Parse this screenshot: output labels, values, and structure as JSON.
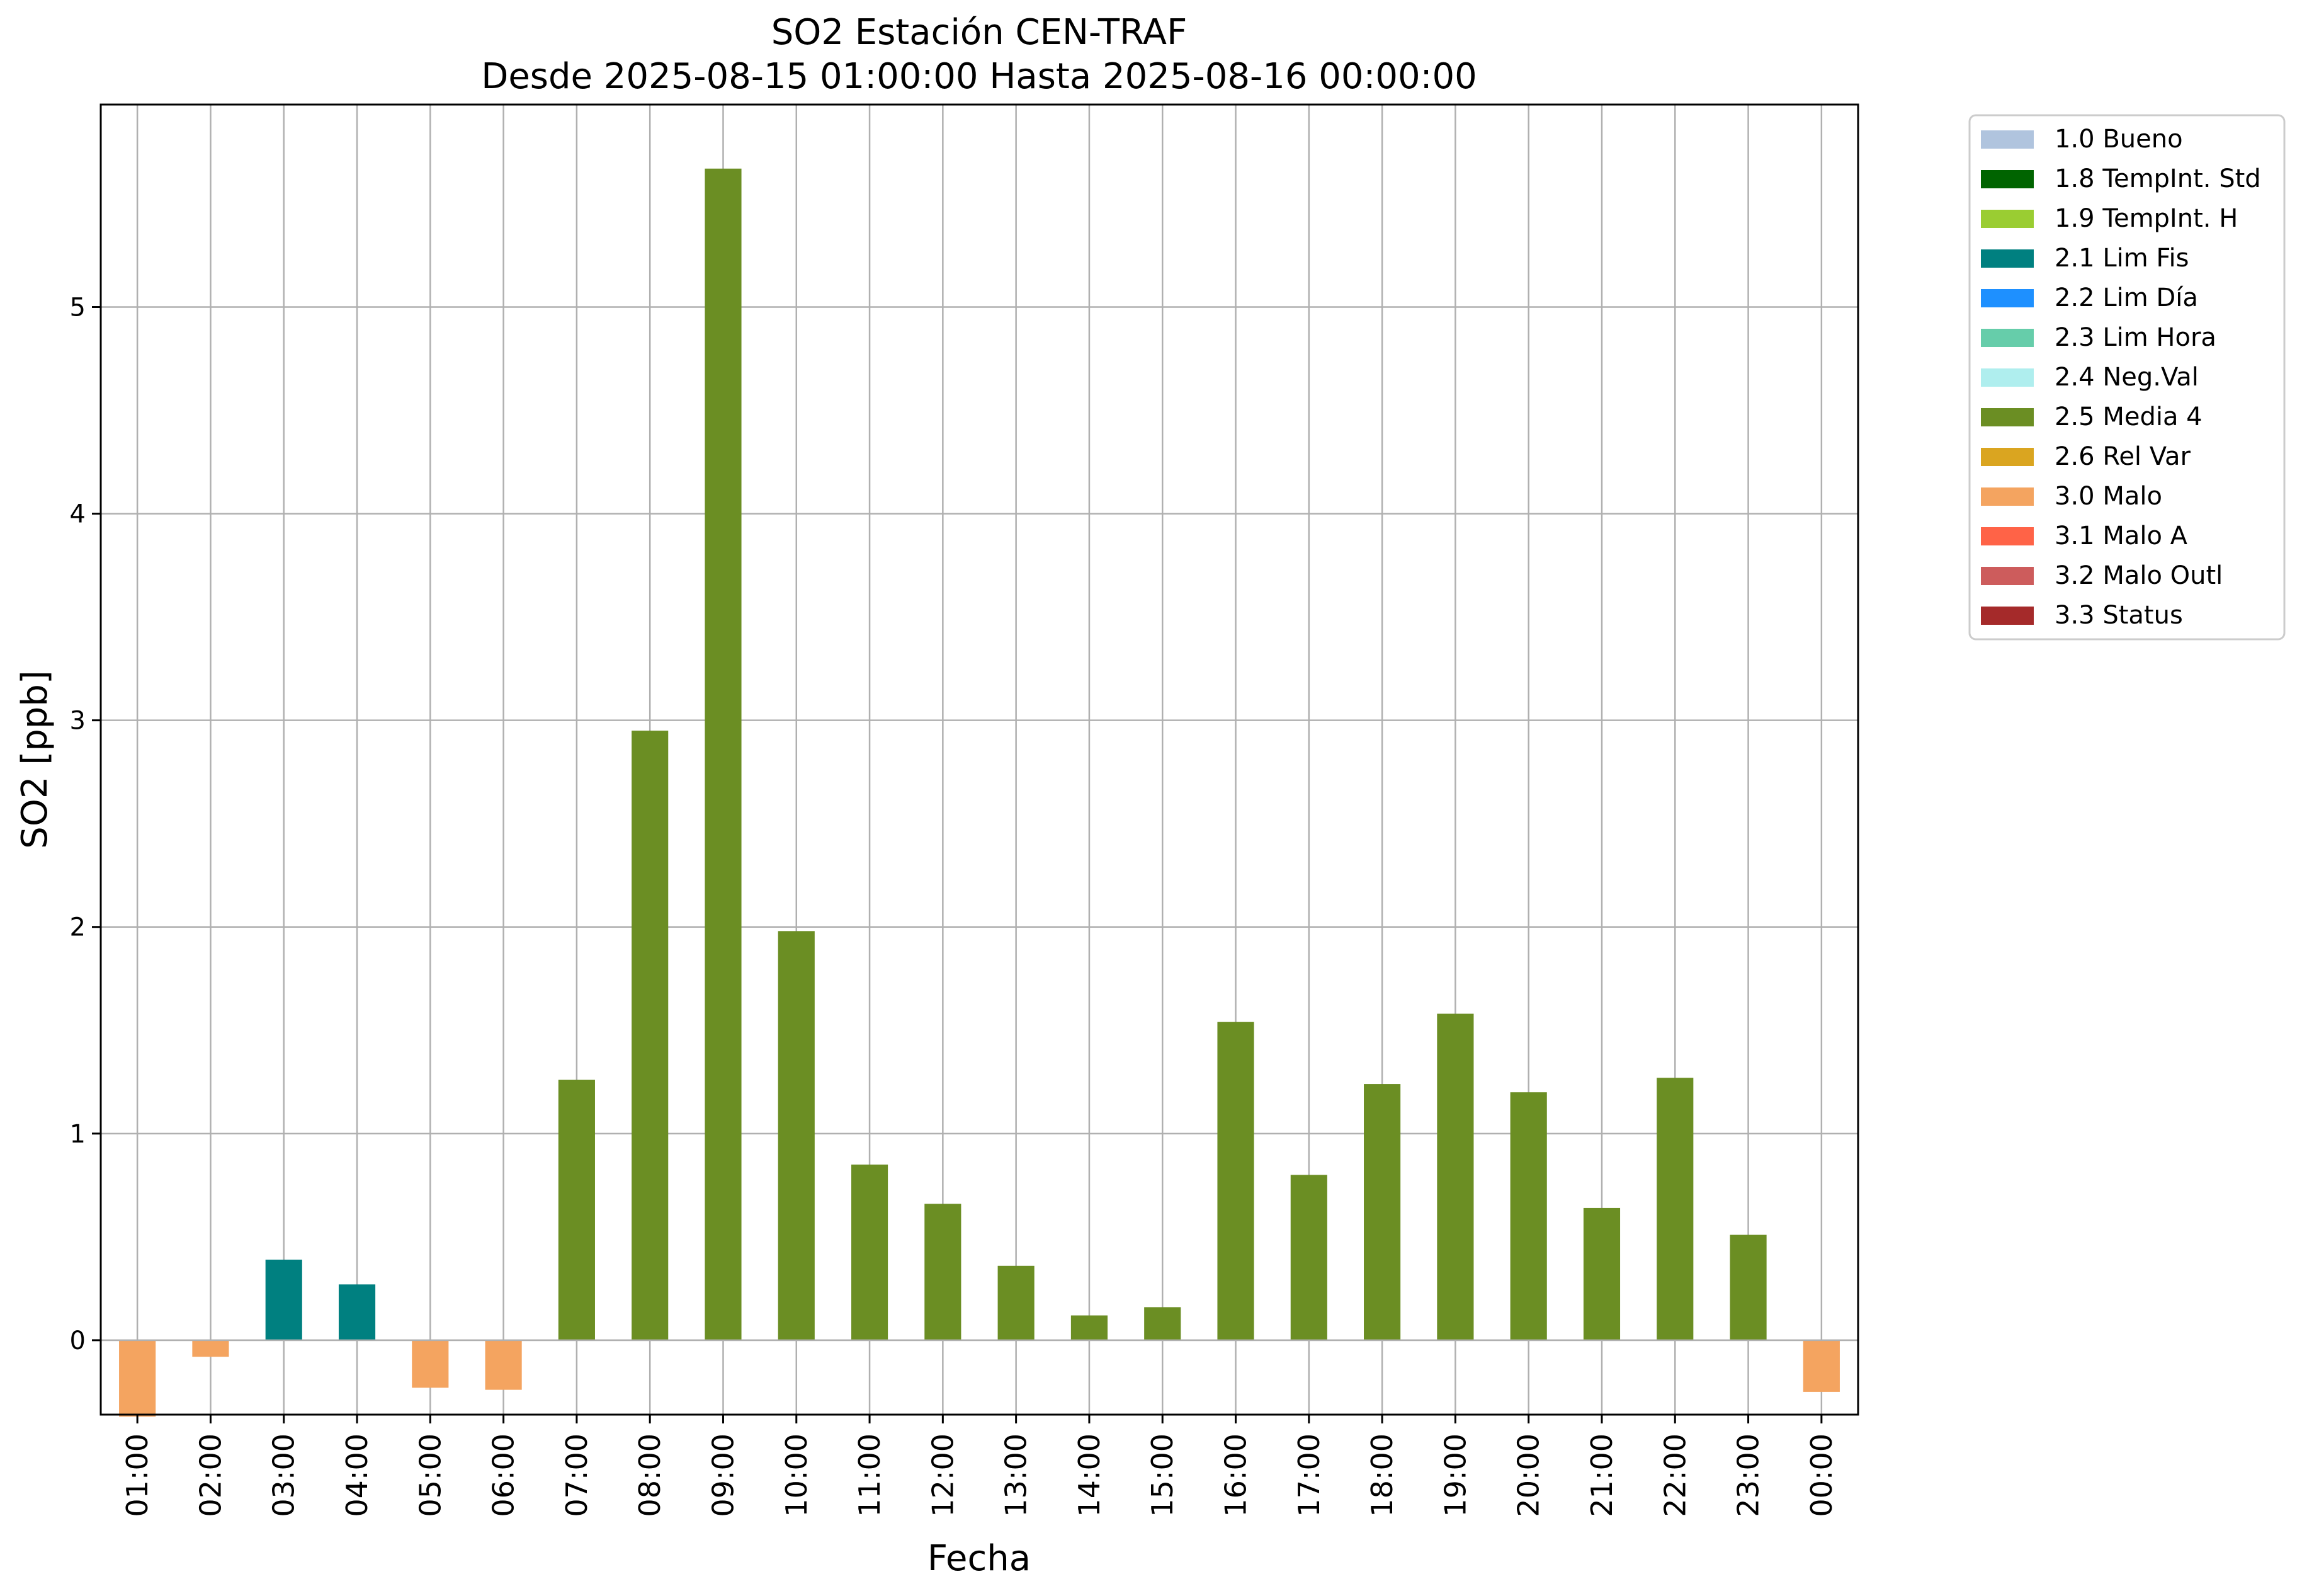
{
  "chart_data": {
    "type": "bar",
    "title": "SO2 Estación CEN-TRAF",
    "subtitle": "Desde 2025-08-15 01:00:00 Hasta 2025-08-16 00:00:00",
    "xlabel": "Fecha",
    "ylabel": "SO2 [ppb]",
    "ylim": [
      -0.36,
      5.98
    ],
    "yticks": [
      0,
      1,
      2,
      3,
      4,
      5
    ],
    "grid": true,
    "legend_position": "outside-top-right",
    "categories": [
      "01:00",
      "02:00",
      "03:00",
      "04:00",
      "05:00",
      "06:00",
      "07:00",
      "08:00",
      "09:00",
      "10:00",
      "11:00",
      "12:00",
      "13:00",
      "14:00",
      "15:00",
      "16:00",
      "17:00",
      "18:00",
      "19:00",
      "20:00",
      "21:00",
      "22:00",
      "23:00",
      "00:00"
    ],
    "values": [
      -0.37,
      -0.08,
      0.39,
      0.27,
      -0.23,
      -0.24,
      1.26,
      2.95,
      5.67,
      1.98,
      0.85,
      0.66,
      0.36,
      0.12,
      0.16,
      1.54,
      0.8,
      1.24,
      1.58,
      1.2,
      0.64,
      1.27,
      0.51,
      -0.25
    ],
    "flags": [
      "3.0 Malo",
      "3.0 Malo",
      "2.1 Lim Fis",
      "2.1 Lim Fis",
      "3.0 Malo",
      "3.0 Malo",
      "2.5 Media 4",
      "2.5 Media 4",
      "2.5 Media 4",
      "2.5 Media 4",
      "2.5 Media 4",
      "2.5 Media 4",
      "2.5 Media 4",
      "2.5 Media 4",
      "2.5 Media 4",
      "2.5 Media 4",
      "2.5 Media 4",
      "2.5 Media 4",
      "2.5 Media 4",
      "2.5 Media 4",
      "2.5 Media 4",
      "2.5 Media 4",
      "2.5 Media 4",
      "3.0 Malo"
    ],
    "legend": [
      {
        "label": "1.0 Bueno",
        "color": "#b0c4de"
      },
      {
        "label": "1.8 TempInt. Std",
        "color": "#006400"
      },
      {
        "label": "1.9 TempInt. H",
        "color": "#9acd32"
      },
      {
        "label": "2.1 Lim Fis",
        "color": "#008080"
      },
      {
        "label": "2.2 Lim Día",
        "color": "#1e90ff"
      },
      {
        "label": "2.3 Lim Hora",
        "color": "#66cdaa"
      },
      {
        "label": "2.4 Neg.Val",
        "color": "#afeeee"
      },
      {
        "label": "2.5 Media 4",
        "color": "#6b8e23"
      },
      {
        "label": "2.6 Rel Var",
        "color": "#daa520"
      },
      {
        "label": "3.0 Malo",
        "color": "#f4a460"
      },
      {
        "label": "3.1 Malo A",
        "color": "#ff6347"
      },
      {
        "label": "3.2 Malo Outl",
        "color": "#cd5c5c"
      },
      {
        "label": "3.3 Status",
        "color": "#a52a2a"
      }
    ]
  }
}
